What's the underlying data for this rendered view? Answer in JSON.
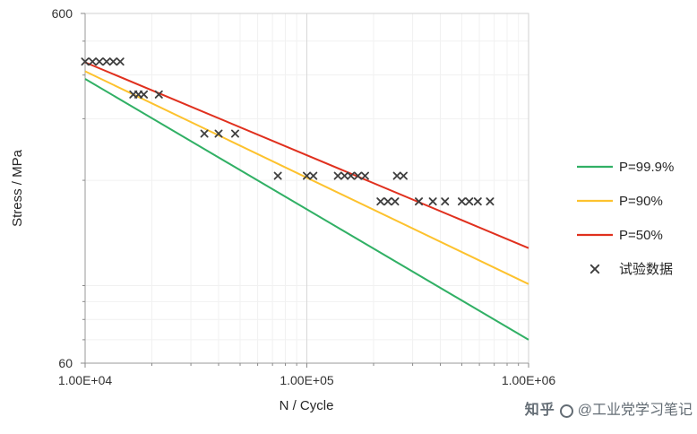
{
  "watermark": {
    "brand": "知乎",
    "handle": "@工业党学习笔记"
  },
  "legend": {
    "position": "right",
    "entries": [
      {
        "label": "P=99.9%",
        "color": "#31b065",
        "marker": "line"
      },
      {
        "label": "P=90%",
        "color": "#fdc22e",
        "marker": "line"
      },
      {
        "label": "P=50%",
        "color": "#e0301e",
        "marker": "line"
      },
      {
        "label": "试验数据",
        "color": "#3f3f3f",
        "marker": "x"
      }
    ]
  },
  "chart_data": {
    "type": "line+scatter",
    "title": "",
    "xlabel": "N / Cycle",
    "ylabel": "Stress / MPa",
    "x_scale": "log",
    "y_scale": "log",
    "xlim": [
      10000,
      1000000
    ],
    "ylim": [
      60,
      600
    ],
    "grid": true,
    "x_tick_labels": [
      {
        "value": 10000,
        "label": "1.00E+04"
      },
      {
        "value": 100000,
        "label": "1.00E+05"
      },
      {
        "value": 1000000,
        "label": "1.00E+06"
      }
    ],
    "y_tick_labels": [
      {
        "value": 600,
        "label": "600"
      },
      {
        "value": 60,
        "label": "60"
      }
    ],
    "x_minor_gridlines": [
      20000,
      30000,
      40000,
      50000,
      60000,
      70000,
      80000,
      90000,
      200000,
      300000,
      400000,
      500000,
      600000,
      700000,
      800000,
      900000
    ],
    "y_minor_gridlines": [
      70,
      80,
      90,
      100,
      200,
      300,
      400,
      500
    ],
    "series": [
      {
        "name": "P=99.9%",
        "type": "line",
        "color": "#31b065",
        "points": [
          [
            10000,
            390
          ],
          [
            1000000,
            70
          ]
        ]
      },
      {
        "name": "P=90%",
        "type": "line",
        "color": "#fdc22e",
        "points": [
          [
            10000,
            410
          ],
          [
            1000000,
            101
          ]
        ]
      },
      {
        "name": "P=50%",
        "type": "line",
        "color": "#e0301e",
        "points": [
          [
            10000,
            435
          ],
          [
            1000000,
            128
          ]
        ]
      },
      {
        "name": "试验数据",
        "type": "scatter",
        "color": "#3f3f3f",
        "points": [
          [
            10000,
            437
          ],
          [
            10800,
            437
          ],
          [
            11600,
            437
          ],
          [
            12500,
            437
          ],
          [
            13400,
            437
          ],
          [
            14400,
            437
          ],
          [
            16500,
            352
          ],
          [
            17400,
            352
          ],
          [
            18400,
            352
          ],
          [
            21500,
            352
          ],
          [
            34500,
            272
          ],
          [
            40000,
            272
          ],
          [
            47500,
            272
          ],
          [
            74000,
            206
          ],
          [
            100000,
            206
          ],
          [
            107000,
            206
          ],
          [
            138000,
            206
          ],
          [
            148000,
            206
          ],
          [
            158000,
            206
          ],
          [
            170000,
            206
          ],
          [
            183000,
            206
          ],
          [
            255000,
            206
          ],
          [
            273000,
            206
          ],
          [
            215000,
            174
          ],
          [
            232000,
            174
          ],
          [
            250000,
            174
          ],
          [
            320000,
            174
          ],
          [
            370000,
            174
          ],
          [
            420000,
            174
          ],
          [
            500000,
            174
          ],
          [
            540000,
            174
          ],
          [
            590000,
            174
          ],
          [
            670000,
            174
          ]
        ]
      }
    ]
  }
}
